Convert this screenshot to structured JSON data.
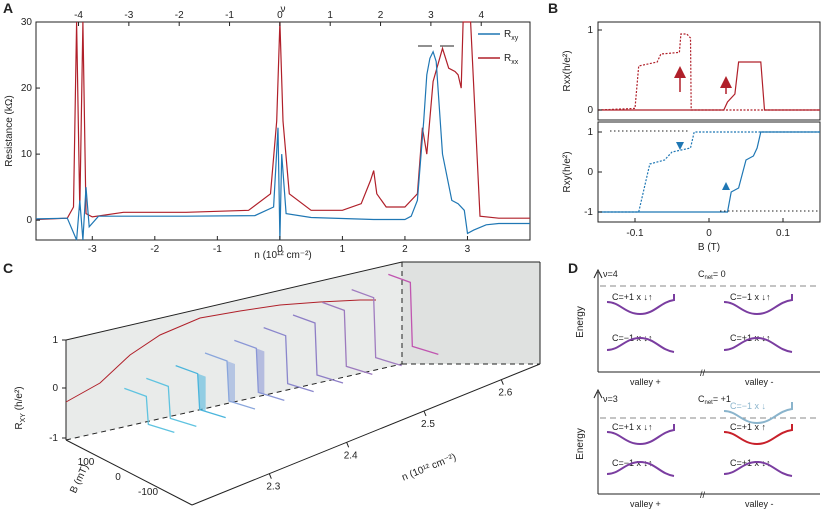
{
  "panel_labels": {
    "a": "A",
    "b": "B",
    "c": "C",
    "d": "D"
  },
  "colors": {
    "rxy": "#1f77b4",
    "rxx": "#b0202a",
    "axis": "#222222"
  },
  "chart_data": [
    {
      "id": "A",
      "type": "line",
      "xlabel": "n (10¹² cm⁻²)",
      "ylabel": "Resistance (kΩ)",
      "top_axis_label": "ν",
      "xlim": [
        -3.9,
        4.0
      ],
      "ylim": [
        -3,
        30
      ],
      "x_ticks": [
        "-3",
        "-2",
        "-1",
        "0",
        "1",
        "2",
        "3"
      ],
      "y_ticks": [
        "0",
        "10",
        "20",
        "30"
      ],
      "top_ticks": [
        "-4",
        "-3",
        "-2",
        "-1",
        "0",
        "1",
        "2",
        "3",
        "4"
      ],
      "legend": [
        "R",
        "R"
      ],
      "legend_subscripts": [
        "xy",
        "xx"
      ],
      "series": [
        {
          "name": "Rxy",
          "x": [
            -3.9,
            -3.4,
            -3.25,
            -3.2,
            -3.15,
            -3.1,
            -3.05,
            -2.9,
            -1.5,
            -0.4,
            -0.1,
            -0.03,
            0,
            0.03,
            0.1,
            0.5,
            1.5,
            2.0,
            2.1,
            2.2,
            2.3,
            2.35,
            2.4,
            2.45,
            2.5,
            2.6,
            2.75,
            2.85,
            2.95,
            3.0,
            3.1,
            3.3,
            3.5,
            4.0
          ],
          "y": [
            0.2,
            0.3,
            -4,
            3,
            -4,
            5,
            -1,
            0.6,
            0.6,
            0.7,
            2,
            14,
            -3,
            10,
            1,
            0.4,
            0.1,
            0.1,
            0.6,
            3,
            15,
            22,
            24.5,
            25.5,
            24,
            10,
            3,
            2.5,
            1.5,
            -2,
            -1.5,
            -0.7,
            -0.5,
            -0.5
          ]
        },
        {
          "name": "Rxx",
          "x": [
            -3.9,
            -3.4,
            -3.3,
            -3.25,
            -3.2,
            -3.15,
            -3.1,
            -3.0,
            -2.5,
            -1.5,
            -0.5,
            -0.15,
            -0.05,
            0,
            0.05,
            0.15,
            0.5,
            1.0,
            1.3,
            1.45,
            1.5,
            1.55,
            1.7,
            2.0,
            2.2,
            2.28,
            2.35,
            2.45,
            2.6,
            2.7,
            2.8,
            2.85,
            2.9,
            2.93,
            3.0,
            3.05,
            3.2,
            3.5,
            4.0
          ],
          "y": [
            0.1,
            0.3,
            2,
            30,
            1.5,
            30,
            1,
            0.5,
            1.2,
            1.2,
            1.5,
            4,
            15,
            30,
            15,
            4,
            1.5,
            1.5,
            2.5,
            6,
            7.5,
            4,
            2,
            2,
            4,
            14,
            10,
            21,
            26,
            23,
            22.5,
            22,
            20,
            30,
            30,
            30,
            0.6,
            0.3,
            0.3
          ]
        }
      ]
    },
    {
      "id": "B",
      "type": "line",
      "xlabel": "B (T)",
      "ylabel_top": "Rxx(h/e²)",
      "ylabel_bottom": "Rxy(h/e²)",
      "xlim": [
        -0.15,
        0.15
      ],
      "x_ticks": [
        "-0.1",
        "0",
        "0.1"
      ],
      "y_ticks_top": [
        "0",
        "1"
      ],
      "y_ticks_bottom": [
        "-1",
        "0",
        "1"
      ],
      "series": [
        {
          "name": "Rxx down-sweep",
          "x": [
            -0.15,
            -0.1,
            -0.095,
            -0.07,
            -0.065,
            -0.04,
            -0.038,
            -0.03,
            -0.025,
            -0.024,
            0.15
          ],
          "y": [
            0,
            0.02,
            0.55,
            0.6,
            0.7,
            0.72,
            0.95,
            0.95,
            0.9,
            0,
            0
          ]
        },
        {
          "name": "Rxx up-sweep",
          "x": [
            -0.15,
            0.02,
            0.025,
            0.035,
            0.04,
            0.07,
            0.075,
            0.15
          ],
          "y": [
            0,
            0,
            0.1,
            0.2,
            0.6,
            0.6,
            0,
            0
          ]
        },
        {
          "name": "Rxy down-sweep",
          "x": [
            0.15,
            0.075,
            -0.02,
            -0.025,
            -0.05,
            -0.06,
            -0.08,
            -0.095,
            -0.15
          ],
          "y": [
            1,
            1,
            1,
            0.6,
            0.5,
            0.3,
            0.2,
            -1,
            -1
          ]
        },
        {
          "name": "Rxy up-sweep",
          "x": [
            -0.15,
            -0.05,
            0.025,
            0.03,
            0.04,
            0.05,
            0.06,
            0.065,
            0.07,
            0.15
          ],
          "y": [
            -1,
            -1,
            -1,
            -0.5,
            -0.4,
            0.3,
            0.4,
            0.6,
            1,
            1
          ]
        }
      ]
    },
    {
      "id": "C",
      "type": "line",
      "zlabel": "R",
      "zlabel_sub": "XY",
      "zlabel_rest": " (h/e²)",
      "ylabel": "B (mT)",
      "xlabel": "n (10¹² cm⁻²)",
      "z_ticks": [
        "1",
        "0",
        "-1"
      ],
      "b_ticks": [
        "100",
        "0",
        "-100"
      ],
      "n_ticks": [
        "2.3",
        "2.4",
        "2.5",
        "2.6"
      ],
      "n_values": [
        2.24,
        2.27,
        2.31,
        2.35,
        2.39,
        2.43,
        2.47,
        2.51,
        2.55,
        2.6
      ]
    }
  ],
  "panel_d": {
    "energy_label": "Energy",
    "top": {
      "nu": "ν=4",
      "cnet": "C",
      "cnet_sub": "net",
      "cnet_val": "= 0",
      "cells": [
        "C=+1 x ↓↑",
        "C=−1 x ↓↑",
        "C=−1 x ↓↑",
        "C=+1 x ↓↑"
      ],
      "valleys": [
        "valley +",
        "valley -"
      ]
    },
    "bottom": {
      "nu": "ν=3",
      "cnet": "C",
      "cnet_sub": "net",
      "cnet_val": "= +1",
      "cells": [
        "C=+1 x ↓↑",
        "C=−1 x ↓",
        "C=+1 x ↑",
        "C=−1 x ↓↑",
        "C=+1 x ↓↑"
      ],
      "valleys": [
        "valley +",
        "valley -"
      ]
    }
  }
}
